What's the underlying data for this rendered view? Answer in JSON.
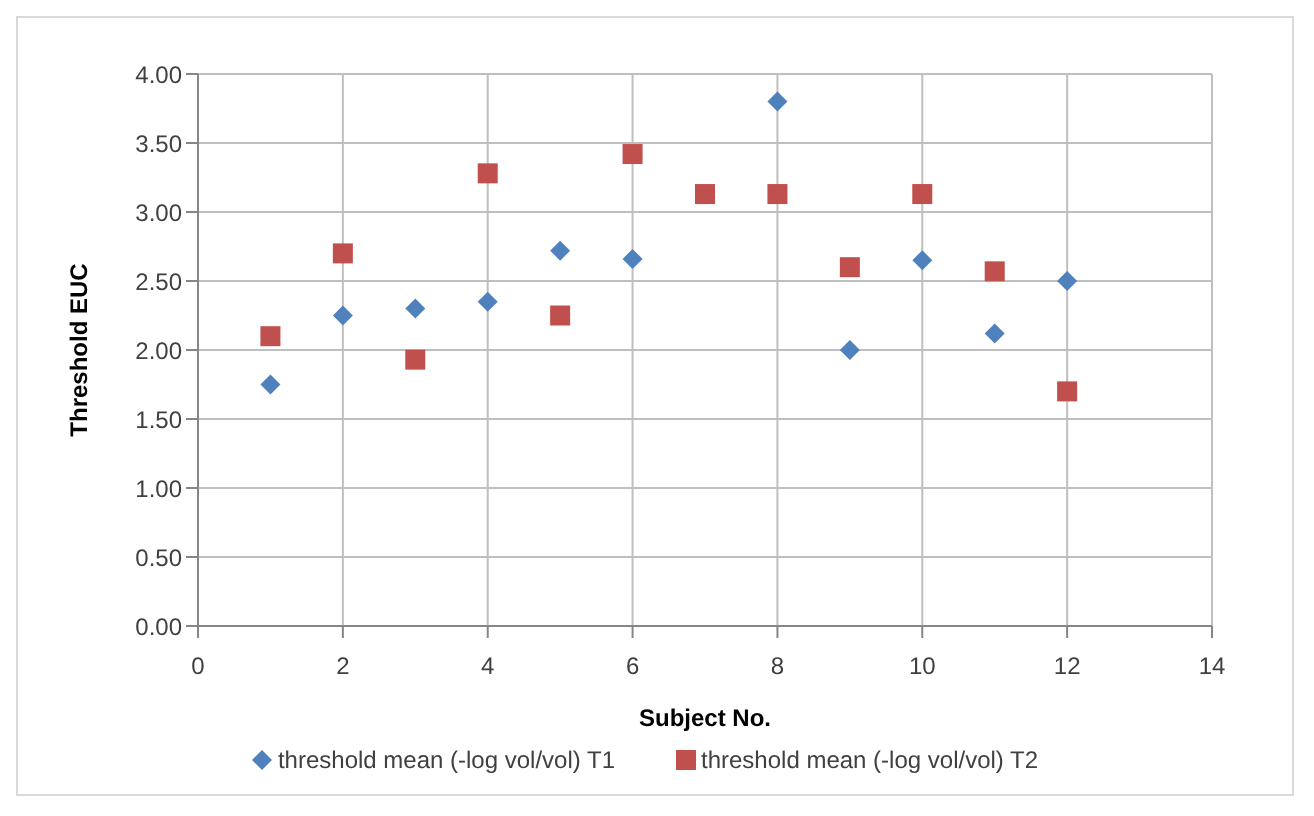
{
  "chart_data": {
    "type": "scatter",
    "xlabel": "Subject No.",
    "ylabel": "Threshold EUC",
    "x": [
      1,
      2,
      3,
      4,
      5,
      6,
      7,
      8,
      9,
      10,
      11,
      12
    ],
    "series": [
      {
        "name": "threshold mean (-log vol/vol) T1",
        "color": "#4f81bd",
        "marker": "diamond",
        "values": [
          1.75,
          2.25,
          2.3,
          2.35,
          2.72,
          2.66,
          null,
          3.8,
          2.0,
          2.65,
          2.12,
          2.5
        ]
      },
      {
        "name": "threshold mean (-log vol/vol) T2",
        "color": "#c0504d",
        "marker": "square",
        "values": [
          2.1,
          2.7,
          1.93,
          3.28,
          2.25,
          3.42,
          3.13,
          3.13,
          2.6,
          3.13,
          2.57,
          1.7
        ]
      }
    ],
    "xlim": [
      0,
      14
    ],
    "xticks": [
      0,
      2,
      4,
      6,
      8,
      10,
      12,
      14
    ],
    "ylim": [
      0,
      4
    ],
    "yticks": [
      {
        "value": 0,
        "label": "0.00"
      },
      {
        "value": 0.5,
        "label": "0.50"
      },
      {
        "value": 1,
        "label": "1.00"
      },
      {
        "value": 1.5,
        "label": "1.50"
      },
      {
        "value": 2,
        "label": "2.00"
      },
      {
        "value": 2.5,
        "label": "2.50"
      },
      {
        "value": 3,
        "label": "3.00"
      },
      {
        "value": 3.5,
        "label": "3.50"
      },
      {
        "value": 4,
        "label": "4.00"
      }
    ],
    "grid": true,
    "legend": "bottom"
  }
}
